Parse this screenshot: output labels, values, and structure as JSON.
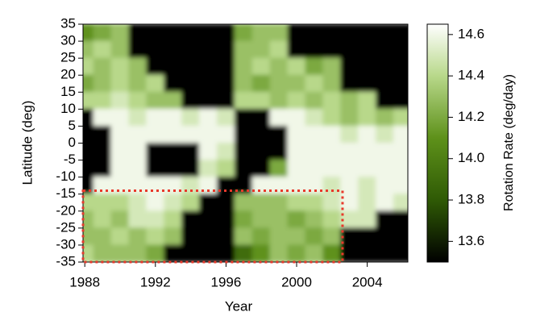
{
  "chart_data": {
    "type": "heatmap",
    "x_label": "Year",
    "y_label": "Latitude (deg)",
    "colorbar_label": "Rotation Rate (deg/day)",
    "x": [
      1988,
      1989,
      1990,
      1991,
      1992,
      1993,
      1994,
      1995,
      1996,
      1997,
      1998,
      1999,
      2000,
      2001,
      2002,
      2003,
      2004,
      2005,
      2006
    ],
    "y": [
      32.5,
      27.5,
      22.5,
      17.5,
      12.5,
      7.5,
      2.5,
      -2.5,
      -7.5,
      -12.5,
      -17.5,
      -22.5,
      -27.5,
      -32.5
    ],
    "z": [
      [
        14.1,
        14.2,
        14.3,
        13.5,
        13.5,
        13.5,
        13.5,
        13.5,
        13.5,
        14.2,
        14.3,
        14.3,
        13.5,
        13.5,
        13.5,
        13.5,
        13.5,
        13.5,
        13.5
      ],
      [
        14.3,
        14.4,
        14.3,
        13.5,
        13.5,
        13.5,
        13.5,
        13.5,
        13.5,
        14.3,
        14.3,
        14.4,
        13.5,
        13.5,
        13.5,
        13.5,
        13.5,
        13.5,
        13.5
      ],
      [
        14.4,
        14.3,
        14.4,
        14.3,
        13.5,
        13.5,
        13.5,
        13.5,
        13.5,
        14.3,
        14.4,
        14.3,
        14.4,
        14.2,
        14.3,
        13.5,
        13.5,
        13.5,
        13.5
      ],
      [
        14.2,
        14.3,
        14.4,
        14.3,
        14.4,
        13.5,
        13.5,
        13.5,
        13.5,
        14.3,
        14.2,
        14.3,
        14.3,
        14.4,
        14.3,
        13.5,
        13.5,
        13.5,
        13.5
      ],
      [
        14.4,
        14.4,
        14.5,
        14.4,
        14.3,
        14.3,
        13.5,
        13.5,
        13.5,
        14.4,
        14.4,
        14.3,
        14.4,
        14.3,
        14.4,
        14.3,
        14.4,
        13.5,
        13.5
      ],
      [
        13.5,
        14.6,
        14.6,
        14.5,
        14.6,
        14.6,
        14.5,
        14.6,
        14.5,
        13.5,
        13.5,
        14.6,
        14.6,
        14.5,
        14.4,
        14.3,
        14.4,
        14.3,
        14.4
      ],
      [
        13.5,
        13.5,
        14.6,
        14.6,
        14.6,
        14.6,
        14.6,
        14.6,
        14.6,
        13.5,
        13.5,
        13.5,
        14.6,
        14.6,
        14.6,
        14.5,
        14.6,
        14.5,
        14.6
      ],
      [
        13.5,
        13.5,
        14.6,
        14.6,
        13.5,
        13.5,
        13.5,
        14.6,
        14.5,
        13.5,
        13.5,
        13.5,
        14.6,
        14.6,
        14.6,
        14.6,
        14.6,
        14.6,
        14.6
      ],
      [
        13.5,
        13.5,
        14.6,
        14.6,
        13.5,
        13.5,
        13.5,
        14.5,
        14.4,
        13.5,
        13.5,
        14.2,
        14.6,
        14.6,
        14.6,
        14.6,
        14.6,
        14.6,
        14.6
      ],
      [
        13.5,
        14.6,
        14.6,
        14.6,
        14.6,
        14.6,
        14.5,
        14.6,
        13.5,
        13.5,
        14.6,
        14.6,
        14.6,
        14.6,
        14.5,
        14.6,
        14.5,
        14.6,
        14.6
      ],
      [
        14.4,
        14.4,
        14.4,
        14.5,
        14.6,
        14.5,
        14.4,
        13.5,
        13.5,
        14.3,
        14.3,
        14.3,
        14.4,
        14.4,
        14.5,
        14.6,
        14.5,
        14.6,
        14.5
      ],
      [
        14.3,
        14.4,
        14.3,
        14.5,
        14.5,
        14.4,
        13.5,
        13.5,
        13.5,
        14.2,
        14.3,
        14.3,
        14.2,
        14.3,
        14.4,
        14.5,
        14.5,
        13.5,
        13.5
      ],
      [
        14.3,
        14.3,
        14.4,
        14.3,
        14.4,
        14.3,
        13.5,
        13.5,
        13.5,
        14.3,
        14.2,
        14.3,
        14.3,
        14.2,
        14.3,
        13.5,
        13.5,
        13.5,
        13.5
      ],
      [
        14.4,
        14.3,
        14.3,
        14.3,
        14.2,
        13.5,
        13.5,
        13.5,
        13.5,
        13.9,
        14.1,
        14.3,
        14.2,
        14.3,
        14.1,
        13.5,
        13.5,
        13.5,
        13.5
      ]
    ],
    "xlim": [
      1987.9,
      2006.3
    ],
    "ylim": [
      -35,
      35
    ],
    "clim": [
      13.5,
      14.65
    ],
    "xticks": [
      1988,
      1992,
      1996,
      2000,
      2004
    ],
    "yticks": [
      -35,
      -30,
      -25,
      -20,
      -15,
      -10,
      -5,
      0,
      5,
      10,
      15,
      20,
      25,
      30,
      35
    ],
    "cticks": [
      13.6,
      13.8,
      {
        "value": 14,
        "label": "14.0"
      },
      14.2,
      14.4,
      14.6
    ],
    "colorscale": [
      [
        13.5,
        "#000000"
      ],
      [
        13.8,
        "#2f5a05"
      ],
      [
        14.1,
        "#5e911a"
      ],
      [
        14.4,
        "#b8d88a"
      ],
      [
        14.65,
        "#ffffff"
      ]
    ],
    "highlight_box": {
      "xlim": [
        1987.9,
        2002.6
      ],
      "ylim": [
        -35,
        -14
      ],
      "color": "#e8392b"
    }
  }
}
